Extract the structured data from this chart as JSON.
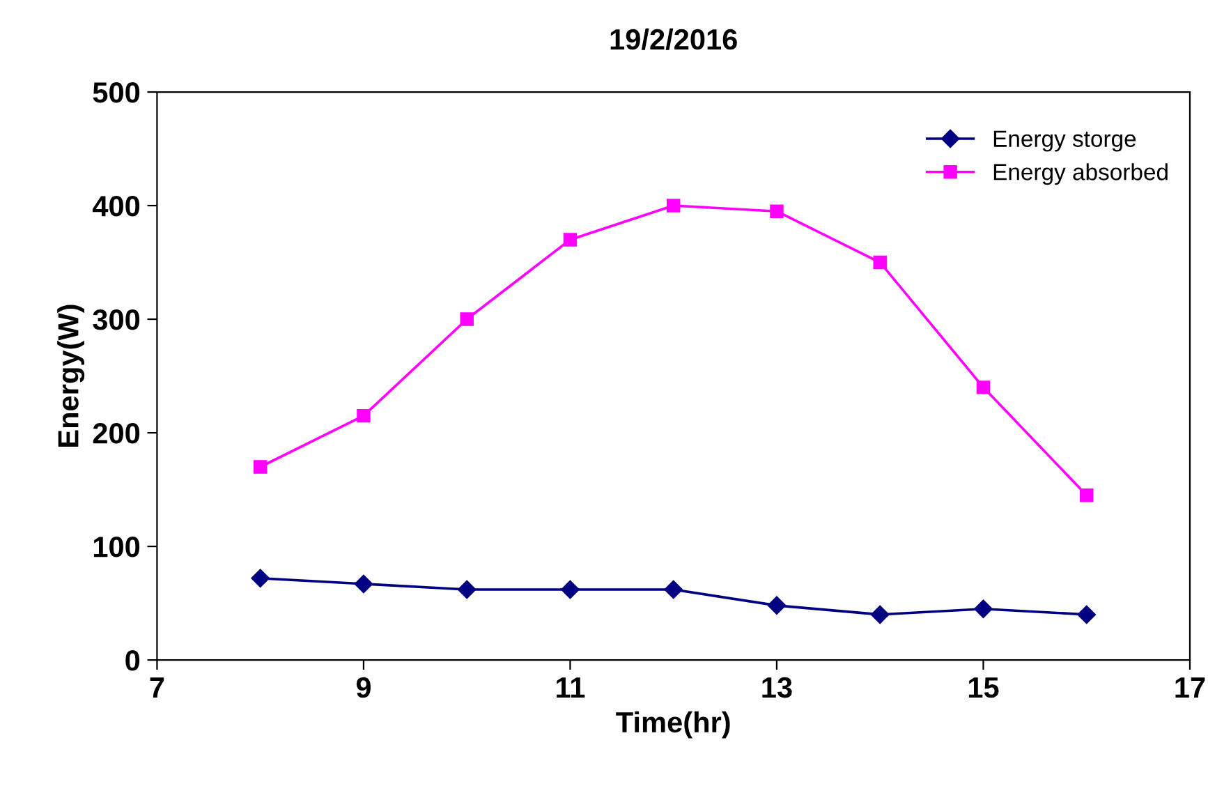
{
  "chart_data": {
    "type": "line",
    "title": "19/2/2016",
    "xlabel": "Time(hr)",
    "ylabel": "Energy(W)",
    "x": [
      8,
      9,
      10,
      11,
      12,
      13,
      14,
      15,
      16
    ],
    "series": [
      {
        "name": "Energy storge",
        "color": "#000080",
        "marker": "diamond",
        "values": [
          72,
          67,
          62,
          62,
          62,
          48,
          40,
          45,
          40
        ]
      },
      {
        "name": "Energy absorbed",
        "color": "#ff00ff",
        "marker": "square",
        "values": [
          170,
          215,
          300,
          370,
          400,
          395,
          350,
          240,
          145
        ]
      }
    ],
    "xlim": [
      7,
      17
    ],
    "xticks": [
      7,
      9,
      11,
      13,
      15,
      17
    ],
    "ylim": [
      0,
      500
    ],
    "yticks": [
      0,
      100,
      200,
      300,
      400,
      500
    ],
    "grid": false,
    "legend": "top right",
    "line_style": "solid"
  }
}
